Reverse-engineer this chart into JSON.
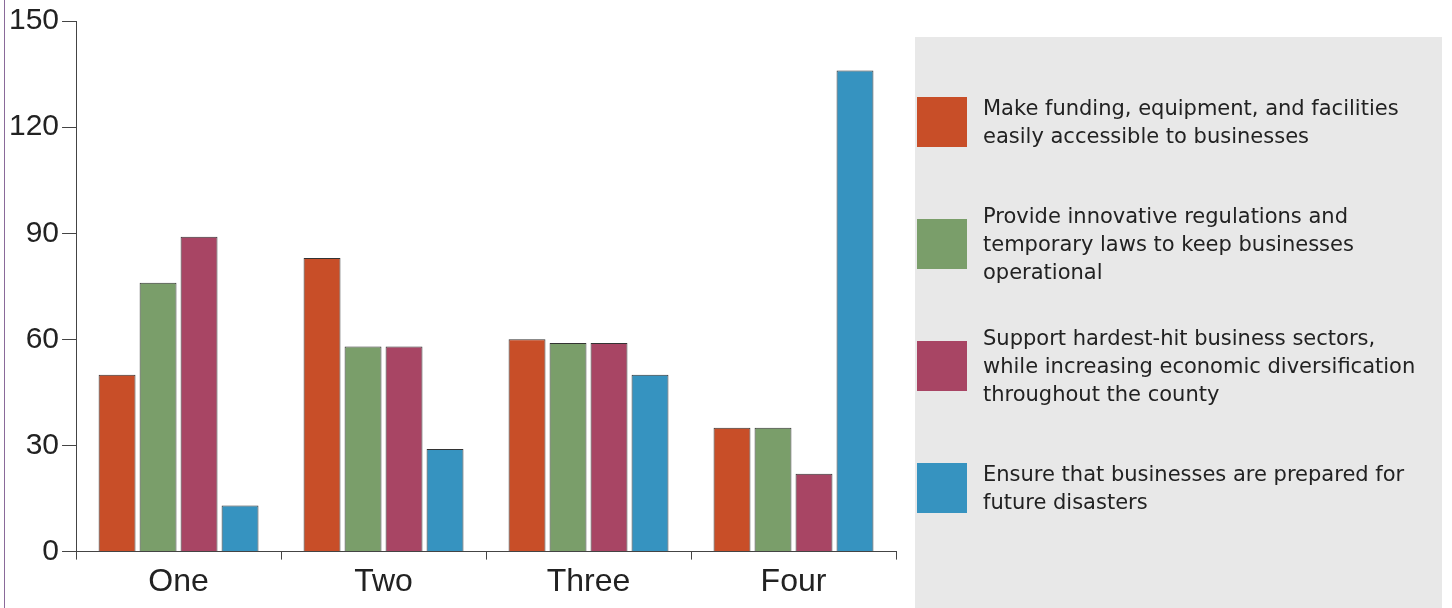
{
  "chart_data": {
    "type": "bar",
    "categories": [
      "One",
      "Two",
      "Three",
      "Four"
    ],
    "series": [
      {
        "name": "Make funding, equipment, and facilities easily accessible to businesses",
        "color": "#c84e28",
        "values": [
          50,
          83,
          60,
          35
        ]
      },
      {
        "name": "Provide innovative regulations and temporary laws to keep businesses operational",
        "color": "#7a9e6a",
        "values": [
          76,
          58,
          59,
          35
        ]
      },
      {
        "name": "Support hardest-hit business sectors, while increasing economic diversification throughout the county",
        "color": "#a84564",
        "values": [
          89,
          58,
          59,
          22
        ]
      },
      {
        "name": "Ensure that businesses are prepared for future disasters",
        "color": "#3693c0",
        "values": [
          13,
          29,
          50,
          136
        ]
      }
    ],
    "ylim": [
      0,
      150
    ],
    "yticks": [
      0,
      30,
      60,
      90,
      120,
      150
    ],
    "grid": false,
    "legend": "right"
  }
}
